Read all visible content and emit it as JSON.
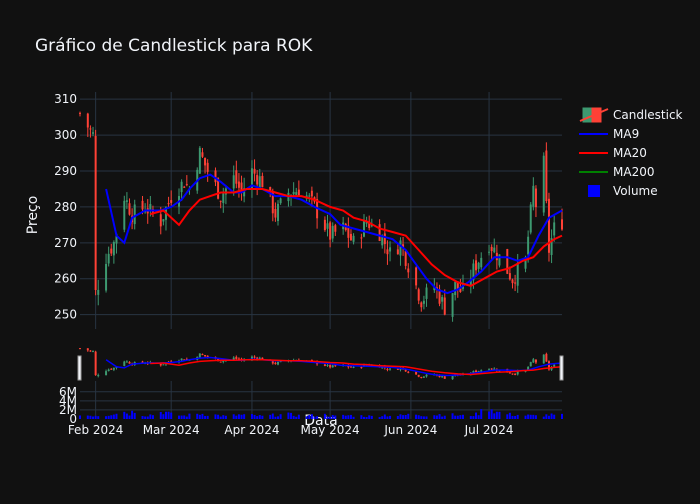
{
  "title": "Gráfico de Candlestick para ROK",
  "colors": {
    "background": "#111111",
    "grid": "#283442",
    "text": "#f2f5fa",
    "increasing": "#3d9970",
    "decreasing": "#ff4136",
    "ma9": "#0000ff",
    "ma20": "#ff0000",
    "ma200": "#008000",
    "volume": "#0000ff"
  },
  "chart_data": {
    "type": "candlestick",
    "title": "Gráfico de Candlestick para ROK",
    "xlabel": "Data",
    "ylabel": "Preço",
    "x_range": [
      "2024-01-26",
      "2024-07-29"
    ],
    "x_ticks": [
      {
        "date": "2024-02-01",
        "label": "Feb 2024"
      },
      {
        "date": "2024-03-01",
        "label": "Mar 2024"
      },
      {
        "date": "2024-04-01",
        "label": "Apr 2024"
      },
      {
        "date": "2024-05-01",
        "label": "May 2024"
      },
      {
        "date": "2024-06-01",
        "label": "Jun 2024"
      },
      {
        "date": "2024-07-01",
        "label": "Jul 2024"
      }
    ],
    "price_axis": {
      "ylim": [
        246,
        312
      ],
      "ticks": [
        250,
        260,
        270,
        280,
        290,
        300,
        310
      ]
    },
    "volume_axis": {
      "ylim": [
        0,
        7500000
      ],
      "ticks": [
        0,
        2000000,
        4000000,
        6000000
      ],
      "tick_labels": [
        "0",
        "2M",
        "4M",
        "6M"
      ]
    },
    "grid": true,
    "legend_position": "top-right",
    "legend": [
      {
        "name": "Candlestick",
        "symbol": "candle"
      },
      {
        "name": "MA9",
        "symbol": "line",
        "color": "#0000ff"
      },
      {
        "name": "MA20",
        "symbol": "line",
        "color": "#ff0000"
      },
      {
        "name": "MA200",
        "symbol": "line",
        "color": "#008000"
      },
      {
        "name": "Volume",
        "symbol": "square",
        "color": "#0000ff"
      }
    ],
    "close_path": [
      [
        "2024-01-26",
        306
      ],
      [
        "2024-01-31",
        300
      ],
      [
        "2024-02-01",
        256
      ],
      [
        "2024-02-05",
        266
      ],
      [
        "2024-02-08",
        270
      ],
      [
        "2024-02-12",
        283
      ],
      [
        "2024-02-15",
        278
      ],
      [
        "2024-02-20",
        280
      ],
      [
        "2024-02-26",
        276
      ],
      [
        "2024-03-01",
        283
      ],
      [
        "2024-03-06",
        287
      ],
      [
        "2024-03-08",
        285
      ],
      [
        "2024-03-12",
        295
      ],
      [
        "2024-03-15",
        290
      ],
      [
        "2024-03-20",
        283
      ],
      [
        "2024-03-25",
        288
      ],
      [
        "2024-03-28",
        284
      ],
      [
        "2024-04-01",
        290
      ],
      [
        "2024-04-05",
        287
      ],
      [
        "2024-04-10",
        278
      ],
      [
        "2024-04-15",
        284
      ],
      [
        "2024-04-20",
        285
      ],
      [
        "2024-04-25",
        280
      ],
      [
        "2024-05-01",
        272
      ],
      [
        "2024-05-06",
        274
      ],
      [
        "2024-05-10",
        270
      ],
      [
        "2024-05-15",
        276
      ],
      [
        "2024-05-20",
        273
      ],
      [
        "2024-05-24",
        267
      ],
      [
        "2024-05-28",
        270
      ],
      [
        "2024-06-01",
        262
      ],
      [
        "2024-06-05",
        254
      ],
      [
        "2024-06-10",
        258
      ],
      [
        "2024-06-14",
        252
      ],
      [
        "2024-06-18",
        258
      ],
      [
        "2024-06-21",
        256
      ],
      [
        "2024-06-26",
        264
      ],
      [
        "2024-07-01",
        270
      ],
      [
        "2024-07-05",
        266
      ],
      [
        "2024-07-10",
        260
      ],
      [
        "2024-07-15",
        265
      ],
      [
        "2024-07-18",
        285
      ],
      [
        "2024-07-20",
        276
      ],
      [
        "2024-07-22",
        292
      ],
      [
        "2024-07-24",
        268
      ],
      [
        "2024-07-26",
        274
      ],
      [
        "2024-07-29",
        276
      ]
    ],
    "series": [
      {
        "name": "MA9",
        "points": [
          [
            "2024-02-05",
            285
          ],
          [
            "2024-02-09",
            272
          ],
          [
            "2024-02-12",
            270
          ],
          [
            "2024-02-15",
            277
          ],
          [
            "2024-02-20",
            279
          ],
          [
            "2024-02-26",
            279
          ],
          [
            "2024-03-01",
            280
          ],
          [
            "2024-03-05",
            282
          ],
          [
            "2024-03-08",
            285
          ],
          [
            "2024-03-12",
            288
          ],
          [
            "2024-03-16",
            289
          ],
          [
            "2024-03-20",
            287
          ],
          [
            "2024-03-25",
            284
          ],
          [
            "2024-03-28",
            284
          ],
          [
            "2024-04-01",
            286
          ],
          [
            "2024-04-05",
            285
          ],
          [
            "2024-04-10",
            283
          ],
          [
            "2024-04-15",
            283
          ],
          [
            "2024-04-20",
            282
          ],
          [
            "2024-04-25",
            280
          ],
          [
            "2024-05-01",
            278
          ],
          [
            "2024-05-05",
            275
          ],
          [
            "2024-05-10",
            274
          ],
          [
            "2024-05-15",
            273
          ],
          [
            "2024-05-20",
            272
          ],
          [
            "2024-05-25",
            271
          ],
          [
            "2024-05-30",
            268
          ],
          [
            "2024-06-03",
            264
          ],
          [
            "2024-06-07",
            260
          ],
          [
            "2024-06-11",
            257
          ],
          [
            "2024-06-15",
            256
          ],
          [
            "2024-06-19",
            257
          ],
          [
            "2024-06-23",
            259
          ],
          [
            "2024-06-28",
            262
          ],
          [
            "2024-07-03",
            266
          ],
          [
            "2024-07-08",
            266
          ],
          [
            "2024-07-12",
            265
          ],
          [
            "2024-07-16",
            266
          ],
          [
            "2024-07-20",
            272
          ],
          [
            "2024-07-24",
            277
          ],
          [
            "2024-07-29",
            279
          ]
        ]
      },
      {
        "name": "MA20",
        "points": [
          [
            "2024-02-22",
            278
          ],
          [
            "2024-02-27",
            279
          ],
          [
            "2024-03-04",
            275
          ],
          [
            "2024-03-08",
            279
          ],
          [
            "2024-03-12",
            282
          ],
          [
            "2024-03-16",
            283
          ],
          [
            "2024-03-20",
            284
          ],
          [
            "2024-03-25",
            284
          ],
          [
            "2024-03-30",
            285
          ],
          [
            "2024-04-05",
            285
          ],
          [
            "2024-04-10",
            284
          ],
          [
            "2024-04-15",
            283
          ],
          [
            "2024-04-20",
            283
          ],
          [
            "2024-04-25",
            282
          ],
          [
            "2024-05-01",
            280
          ],
          [
            "2024-05-06",
            279
          ],
          [
            "2024-05-10",
            277
          ],
          [
            "2024-05-15",
            276
          ],
          [
            "2024-05-20",
            274
          ],
          [
            "2024-05-25",
            273
          ],
          [
            "2024-05-30",
            272
          ],
          [
            "2024-06-04",
            268
          ],
          [
            "2024-06-09",
            264
          ],
          [
            "2024-06-14",
            261
          ],
          [
            "2024-06-19",
            259
          ],
          [
            "2024-06-24",
            258
          ],
          [
            "2024-06-29",
            260
          ],
          [
            "2024-07-04",
            262
          ],
          [
            "2024-07-09",
            263
          ],
          [
            "2024-07-14",
            265
          ],
          [
            "2024-07-18",
            266
          ],
          [
            "2024-07-22",
            269
          ],
          [
            "2024-07-26",
            271
          ],
          [
            "2024-07-29",
            272
          ]
        ]
      },
      {
        "name": "MA200",
        "points": []
      }
    ],
    "volume_bars": [
      [
        "2024-02-05",
        800000
      ],
      [
        "2024-02-08",
        1400000
      ],
      [
        "2024-02-12",
        1600000
      ],
      [
        "2024-02-14",
        1200000
      ],
      [
        "2024-02-16",
        1900000
      ],
      [
        "2024-02-20",
        800000
      ],
      [
        "2024-02-23",
        1000000
      ],
      [
        "2024-02-27",
        1700000
      ],
      [
        "2024-03-01",
        1000000
      ],
      [
        "2024-03-06",
        700000
      ],
      [
        "2024-03-12",
        1200000
      ],
      [
        "2024-03-18",
        900000
      ],
      [
        "2024-03-22",
        600000
      ],
      [
        "2024-03-27",
        900000
      ],
      [
        "2024-04-01",
        800000
      ],
      [
        "2024-04-05",
        600000
      ],
      [
        "2024-04-10",
        900000
      ],
      [
        "2024-04-15",
        1000000
      ],
      [
        "2024-04-20",
        700000
      ],
      [
        "2024-04-25",
        800000
      ],
      [
        "2024-04-29",
        900000
      ],
      [
        "2024-05-03",
        600000
      ],
      [
        "2024-05-08",
        800000
      ],
      [
        "2024-05-13",
        700000
      ],
      [
        "2024-05-17",
        600000
      ],
      [
        "2024-05-22",
        900000
      ],
      [
        "2024-05-27",
        700000
      ],
      [
        "2024-06-03",
        1100000
      ],
      [
        "2024-06-07",
        800000
      ],
      [
        "2024-06-12",
        1000000
      ],
      [
        "2024-06-17",
        900000
      ],
      [
        "2024-06-21",
        700000
      ],
      [
        "2024-06-26",
        1000000
      ],
      [
        "2024-07-01",
        2700000
      ],
      [
        "2024-07-04",
        1500000
      ],
      [
        "2024-07-09",
        1000000
      ],
      [
        "2024-07-15",
        800000
      ],
      [
        "2024-07-19",
        700000
      ],
      [
        "2024-07-24",
        900000
      ],
      [
        "2024-07-28",
        800000
      ]
    ]
  }
}
